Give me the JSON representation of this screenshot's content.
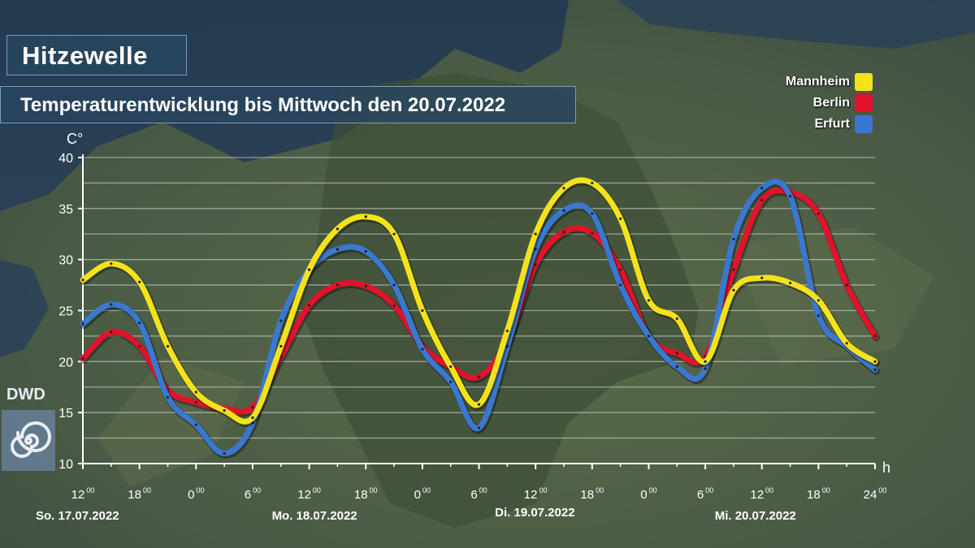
{
  "title": "Hitzewelle",
  "subtitle": "Temperaturentwicklung bis Mittwoch den 20.07.2022",
  "logo_text": "DWD",
  "colors": {
    "mannheim": "#f3e21c",
    "berlin": "#e3122b",
    "erfurt": "#3a78d0"
  },
  "chart_data": {
    "type": "line",
    "ylabel": "C°",
    "xlabel": "h",
    "ylim": [
      10,
      40
    ],
    "xlim": [
      0,
      84
    ],
    "y_ticks": [
      10,
      15,
      20,
      25,
      30,
      35,
      40
    ],
    "x_ticks": [
      {
        "h": 0,
        "label": "12",
        "sup": "00"
      },
      {
        "h": 6,
        "label": "18",
        "sup": "00"
      },
      {
        "h": 12,
        "label": "0",
        "sup": "00"
      },
      {
        "h": 18,
        "label": "6",
        "sup": "00"
      },
      {
        "h": 24,
        "label": "12",
        "sup": "00"
      },
      {
        "h": 30,
        "label": "18",
        "sup": "00"
      },
      {
        "h": 36,
        "label": "0",
        "sup": "00"
      },
      {
        "h": 42,
        "label": "6",
        "sup": "00"
      },
      {
        "h": 48,
        "label": "12",
        "sup": "00"
      },
      {
        "h": 54,
        "label": "18",
        "sup": "00"
      },
      {
        "h": 60,
        "label": "0",
        "sup": "00"
      },
      {
        "h": 66,
        "label": "6",
        "sup": "00"
      },
      {
        "h": 72,
        "label": "12",
        "sup": "00"
      },
      {
        "h": 78,
        "label": "18",
        "sup": "00"
      },
      {
        "h": 84,
        "label": "24",
        "sup": "00"
      }
    ],
    "days": [
      {
        "h": 0,
        "label": "So. 17.07.2022"
      },
      {
        "h": 24,
        "label": "Mo. 18.07.2022"
      },
      {
        "h": 48,
        "label": "Di. 19.07.2022"
      },
      {
        "h": 72,
        "label": "Mi. 20.07.2022"
      }
    ],
    "x": [
      0,
      3,
      6,
      9,
      12,
      15,
      18,
      21,
      24,
      27,
      30,
      33,
      36,
      39,
      42,
      45,
      48,
      51,
      54,
      57,
      60,
      63,
      66,
      69,
      72,
      75,
      78,
      81,
      84
    ],
    "series": [
      {
        "name": "Mannheim",
        "values": [
          28,
          29.6,
          27.8,
          21.5,
          17,
          15.2,
          14.5,
          21.5,
          29,
          33,
          34.2,
          32.5,
          25,
          19.5,
          15.8,
          23,
          32.5,
          37,
          37.5,
          34,
          26,
          24.2,
          20,
          27,
          28.2,
          27.7,
          26,
          21.8,
          20
        ]
      },
      {
        "name": "Berlin",
        "values": [
          20.3,
          22.9,
          21.5,
          17.2,
          16,
          15.4,
          15.5,
          20.5,
          25.5,
          27.5,
          27.4,
          25.5,
          21.5,
          19.5,
          18.5,
          22,
          29.5,
          32.7,
          32.6,
          29,
          22.5,
          20.8,
          20.5,
          29,
          35.8,
          36.6,
          34.5,
          27.5,
          22.5
        ]
      },
      {
        "name": "Erfurt",
        "values": [
          23.7,
          25.6,
          23.8,
          16.5,
          13.8,
          11,
          14,
          24,
          29,
          31,
          30.8,
          27.5,
          21.2,
          18,
          13.5,
          21.5,
          31,
          34.8,
          34.5,
          27.5,
          22.5,
          19.5,
          19.3,
          32,
          37,
          36.2,
          24.5,
          21.5,
          19.2
        ]
      }
    ]
  }
}
